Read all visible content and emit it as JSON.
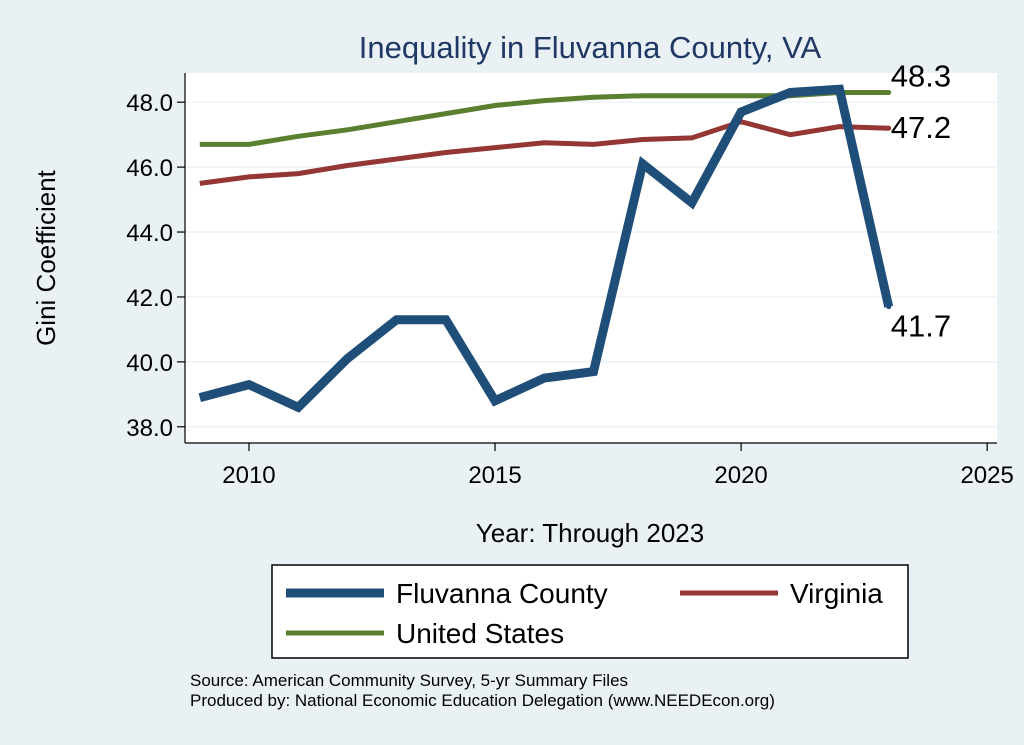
{
  "chart_data": {
    "type": "line",
    "title": "Inequality in Fluvanna County, VA",
    "xlabel": "Year: Through 2023",
    "ylabel": "Gini Coefficient",
    "xlim": [
      2008.7,
      2025.2
    ],
    "ylim": [
      37.5,
      48.9
    ],
    "x_ticks": [
      2010,
      2015,
      2020,
      2025
    ],
    "y_ticks": [
      38.0,
      40.0,
      42.0,
      44.0,
      46.0,
      48.0
    ],
    "x": [
      2009,
      2010,
      2011,
      2012,
      2013,
      2014,
      2015,
      2016,
      2017,
      2018,
      2019,
      2020,
      2021,
      2022,
      2023
    ],
    "series": [
      {
        "name": "Fluvanna County",
        "color": "#1f4e79",
        "values": [
          38.9,
          39.3,
          38.6,
          40.1,
          41.3,
          41.3,
          38.8,
          39.5,
          39.7,
          46.1,
          44.9,
          47.7,
          48.3,
          48.4,
          41.7
        ],
        "end_label": "41.7"
      },
      {
        "name": "Virginia",
        "color": "#943634",
        "values": [
          45.5,
          45.7,
          45.8,
          46.05,
          46.25,
          46.45,
          46.6,
          46.75,
          46.7,
          46.85,
          46.9,
          47.4,
          47.0,
          47.25,
          47.2
        ],
        "end_label": "47.2"
      },
      {
        "name": "United States",
        "color": "#5a7f31",
        "values": [
          46.7,
          46.7,
          46.95,
          47.15,
          47.4,
          47.65,
          47.9,
          48.05,
          48.15,
          48.2,
          48.2,
          48.2,
          48.2,
          48.3,
          48.3
        ],
        "end_label": "48.3"
      }
    ],
    "legend": {
      "placement": "bottom",
      "entries": [
        "Fluvanna County",
        "Virginia",
        "United States"
      ]
    },
    "grid": "horizontal",
    "notes": [
      "Source: American Community Survey, 5-yr Summary Files",
      "Produced by: National Economic Education Delegation (www.NEEDEcon.org)"
    ]
  }
}
